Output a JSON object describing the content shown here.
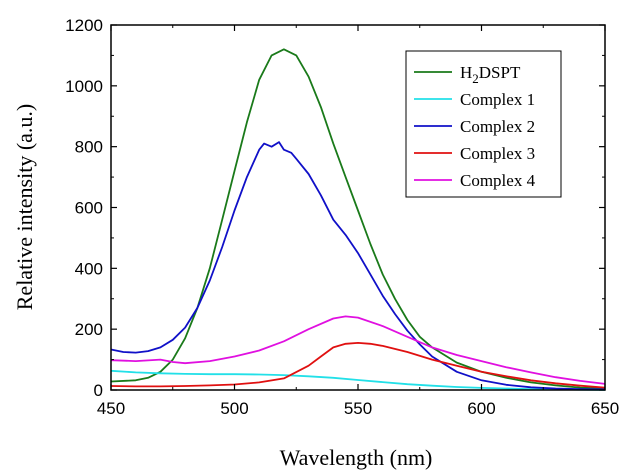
{
  "chart_data": {
    "type": "line",
    "xlabel": "Wavelength (nm)",
    "ylabel": "Relative intensity (a.u.)",
    "xlim": [
      450,
      650
    ],
    "ylim": [
      0,
      1200
    ],
    "xticks": [
      450,
      500,
      550,
      600,
      650
    ],
    "yticks": [
      0,
      200,
      400,
      600,
      800,
      1000,
      1200
    ],
    "grid": false,
    "legend_position": "top-right",
    "series": [
      {
        "name": "H2DSPT",
        "name_main": "H",
        "name_sub": "2",
        "name_rest": "DSPT",
        "color": "#1a7a1a",
        "x": [
          450,
          460,
          465,
          470,
          475,
          480,
          485,
          490,
          495,
          500,
          505,
          510,
          515,
          520,
          525,
          530,
          535,
          540,
          545,
          550,
          555,
          560,
          565,
          570,
          575,
          580,
          590,
          600,
          610,
          620,
          630,
          640,
          650
        ],
        "y": [
          28,
          32,
          40,
          60,
          100,
          170,
          270,
          400,
          560,
          720,
          880,
          1020,
          1100,
          1120,
          1100,
          1030,
          930,
          810,
          700,
          590,
          480,
          380,
          300,
          230,
          175,
          140,
          90,
          60,
          40,
          25,
          15,
          8,
          5
        ]
      },
      {
        "name": "Complex 1",
        "color": "#22e0e8",
        "x": [
          450,
          460,
          470,
          480,
          490,
          500,
          510,
          520,
          530,
          540,
          550,
          560,
          570,
          580,
          590,
          600,
          610,
          620,
          630,
          640,
          650
        ],
        "y": [
          63,
          58,
          55,
          53,
          52,
          52,
          51,
          49,
          45,
          40,
          33,
          26,
          19,
          14,
          10,
          7,
          5,
          3,
          2,
          1,
          0
        ]
      },
      {
        "name": "Complex 2",
        "color": "#1010c8",
        "x": [
          450,
          455,
          460,
          465,
          470,
          475,
          480,
          485,
          490,
          495,
          500,
          505,
          510,
          512,
          515,
          518,
          520,
          523,
          525,
          530,
          535,
          540,
          545,
          550,
          555,
          560,
          565,
          570,
          575,
          580,
          590,
          600,
          610,
          620,
          630,
          640,
          650
        ],
        "y": [
          133,
          125,
          123,
          128,
          140,
          165,
          205,
          270,
          360,
          470,
          590,
          700,
          790,
          810,
          800,
          815,
          790,
          780,
          760,
          710,
          640,
          560,
          510,
          450,
          380,
          310,
          250,
          195,
          150,
          110,
          60,
          32,
          17,
          9,
          5,
          3,
          2
        ]
      },
      {
        "name": "Complex 3",
        "color": "#e01010",
        "x": [
          450,
          460,
          470,
          480,
          490,
          500,
          510,
          520,
          530,
          535,
          540,
          545,
          550,
          555,
          560,
          570,
          580,
          590,
          600,
          610,
          620,
          630,
          640,
          650
        ],
        "y": [
          13,
          12,
          12,
          13,
          15,
          18,
          25,
          38,
          80,
          110,
          140,
          152,
          155,
          152,
          145,
          125,
          100,
          80,
          60,
          45,
          32,
          22,
          14,
          8
        ]
      },
      {
        "name": "Complex 4",
        "color": "#e010e0",
        "x": [
          450,
          460,
          470,
          475,
          480,
          490,
          500,
          510,
          520,
          530,
          540,
          545,
          550,
          560,
          570,
          580,
          590,
          600,
          610,
          620,
          630,
          640,
          650
        ],
        "y": [
          98,
          95,
          100,
          92,
          88,
          95,
          110,
          130,
          160,
          200,
          235,
          242,
          238,
          210,
          175,
          140,
          115,
          95,
          75,
          58,
          42,
          30,
          20
        ]
      }
    ]
  }
}
